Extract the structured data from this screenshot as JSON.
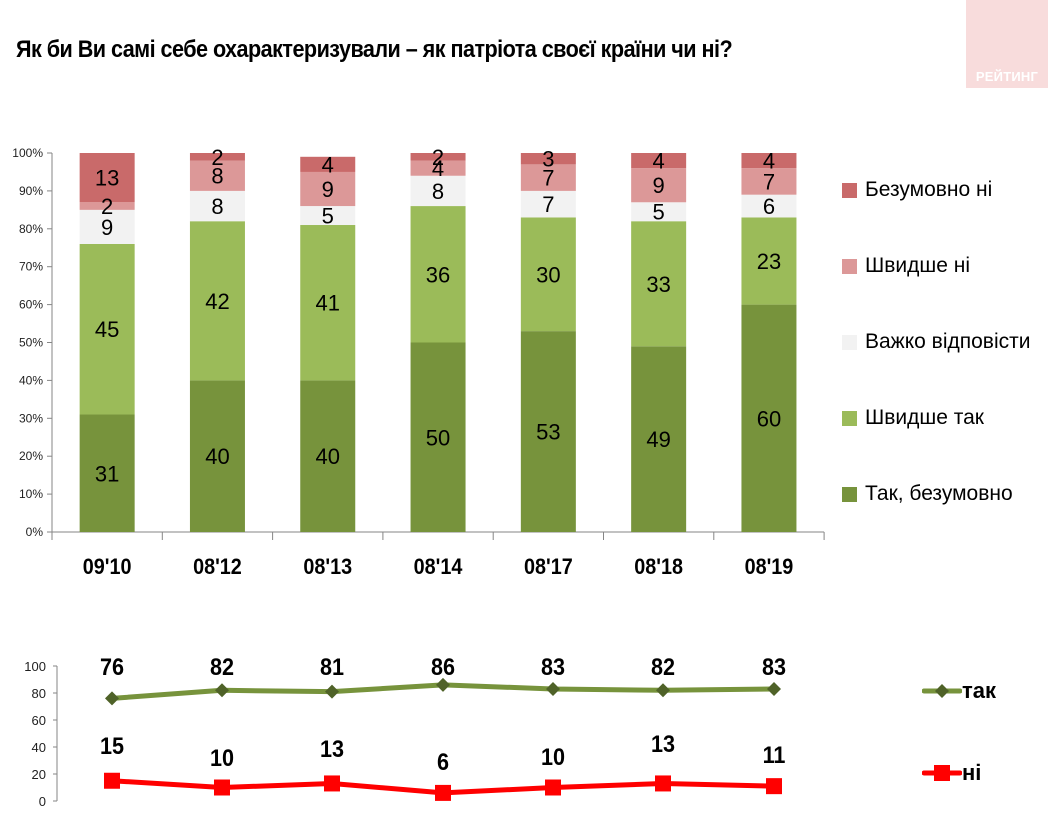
{
  "header": {
    "title": "Як  би Ви самі себе охарактеризували – як патріота своєї країни чи ні?",
    "logo_text": "РЕЙТИНГ",
    "logo_bg": "#f8dcdc"
  },
  "colors": {
    "bezumovno_ni": "#c96a6a",
    "shvydshe_ni": "#dc9898",
    "vazhko": "#f2f2f2",
    "shvydshe_tak": "#9bbb59",
    "tak_bezumovno": "#77933c",
    "line_tak": "#77933c",
    "line_tak_marker": "#4f6228",
    "line_ni": "#ff0000"
  },
  "legend": {
    "items": [
      {
        "label": "Безумовно ні",
        "color": "#c96a6a"
      },
      {
        "label": "Швидше ні",
        "color": "#dc9898"
      },
      {
        "label": "Важко відповісти",
        "color": "#f2f2f2"
      },
      {
        "label": "Швидше так",
        "color": "#9bbb59"
      },
      {
        "label": "Так, безумовно",
        "color": "#77933c"
      }
    ]
  },
  "line_legend": {
    "tak": "так",
    "ni": "ні"
  },
  "chart_data": [
    {
      "type": "bar",
      "stacked": true,
      "percent": true,
      "title": "Як  би Ви самі себе охарактеризували – як патріота своєї країни чи ні?",
      "xlabel": "",
      "ylabel": "",
      "ylim": [
        0,
        100
      ],
      "yticks": [
        "0%",
        "10%",
        "20%",
        "30%",
        "40%",
        "50%",
        "60%",
        "70%",
        "80%",
        "90%",
        "100%"
      ],
      "categories": [
        "09'10",
        "08'12",
        "08'13",
        "08'14",
        "08'17",
        "08'18",
        "08'19"
      ],
      "legend_position": "right",
      "grid": false,
      "series": [
        {
          "name": "Так, безумовно",
          "values": [
            31,
            40,
            40,
            50,
            53,
            49,
            60
          ]
        },
        {
          "name": "Швидше так",
          "values": [
            45,
            42,
            41,
            36,
            30,
            33,
            23
          ]
        },
        {
          "name": "Важко відповісти",
          "values": [
            9,
            8,
            5,
            8,
            7,
            5,
            6
          ]
        },
        {
          "name": "Швидше ні",
          "values": [
            2,
            8,
            9,
            4,
            7,
            9,
            7
          ]
        },
        {
          "name": "Безумовно ні",
          "values": [
            13,
            2,
            4,
            2,
            3,
            4,
            4
          ]
        }
      ]
    },
    {
      "type": "line",
      "title": "",
      "xlabel": "",
      "ylabel": "",
      "ylim": [
        0,
        100
      ],
      "yticks": [
        "0",
        "20",
        "40",
        "60",
        "80",
        "100"
      ],
      "categories": [
        "09'10",
        "08'12",
        "08'13",
        "08'14",
        "08'17",
        "08'18",
        "08'19"
      ],
      "legend_position": "right",
      "grid": false,
      "series": [
        {
          "name": "так",
          "values": [
            76,
            82,
            81,
            86,
            83,
            82,
            83
          ],
          "marker": "diamond"
        },
        {
          "name": "ні",
          "values": [
            15,
            10,
            13,
            6,
            10,
            13,
            11
          ],
          "marker": "square"
        }
      ]
    }
  ]
}
